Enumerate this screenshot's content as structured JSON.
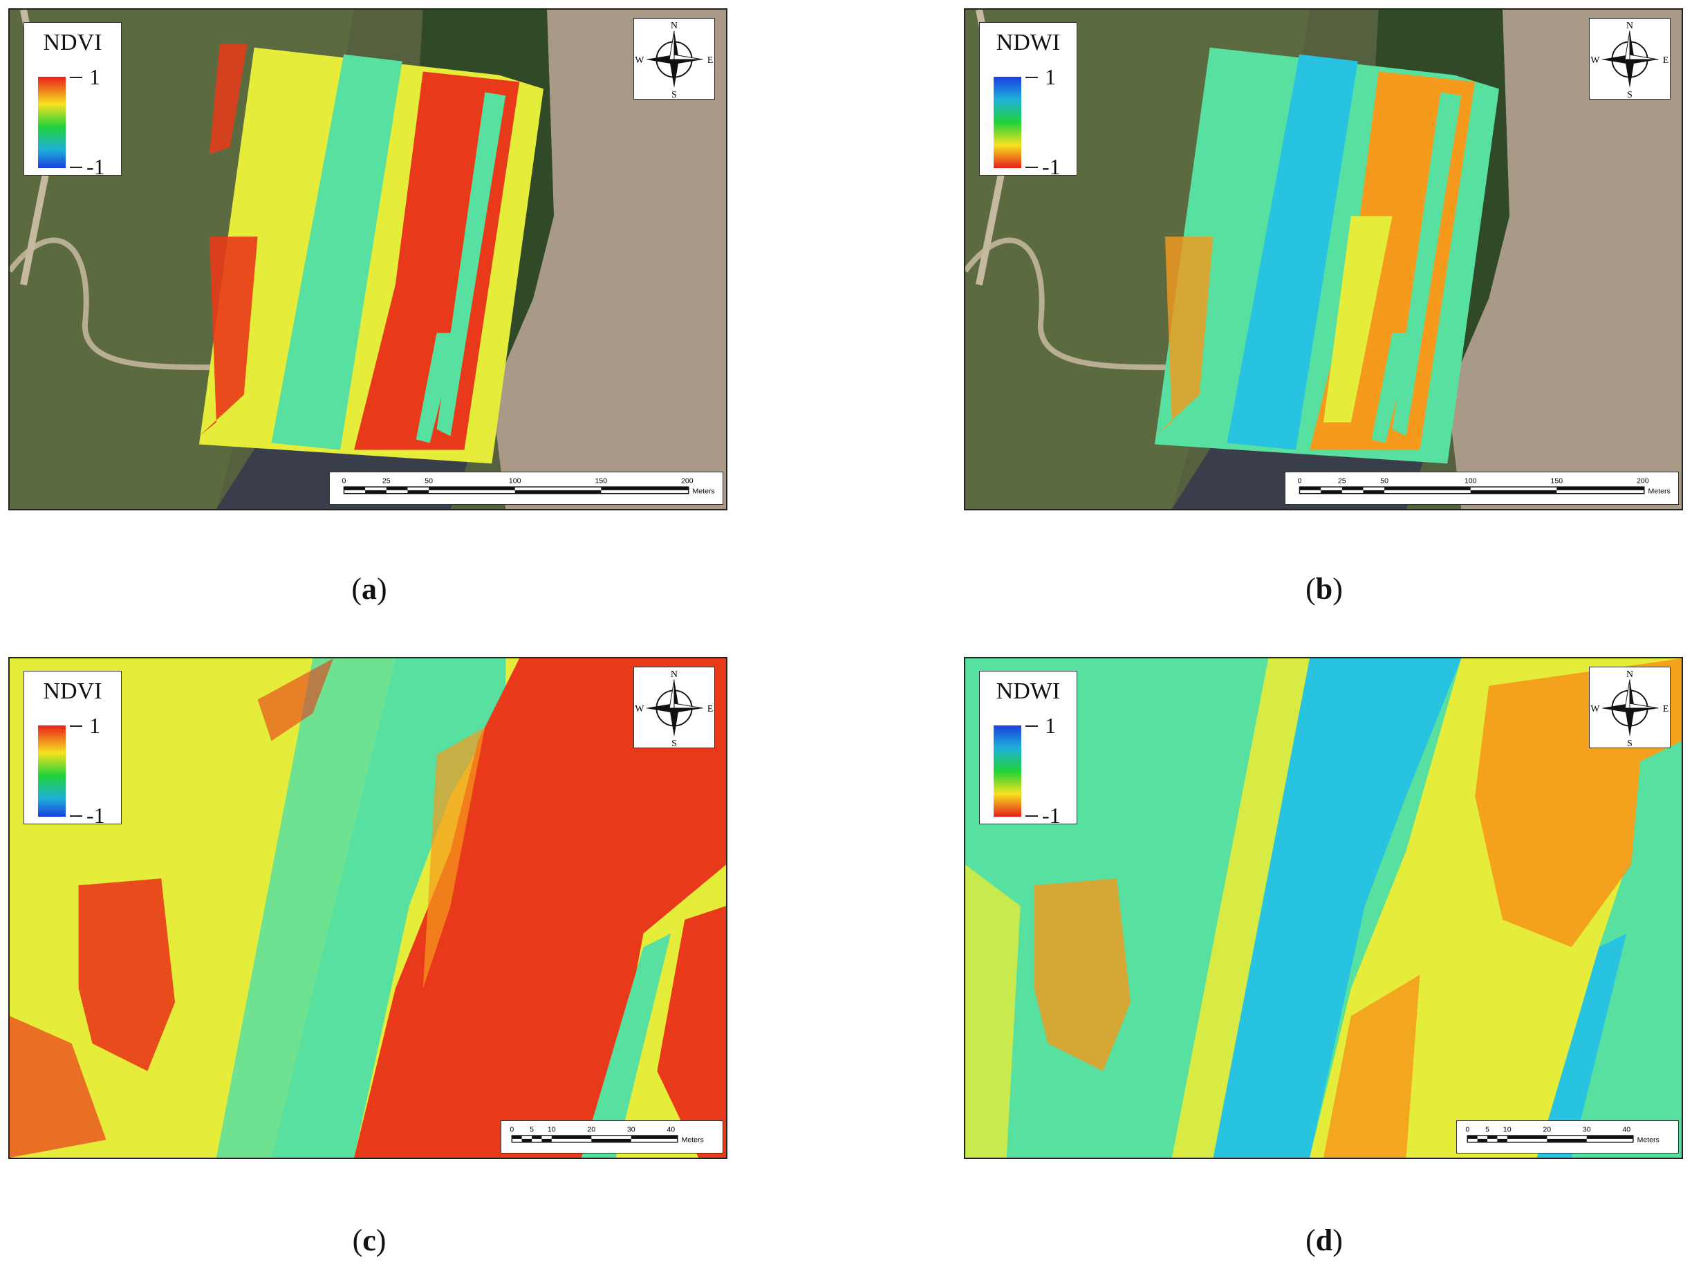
{
  "panels": [
    {
      "id": "a",
      "index_label": "NDVI",
      "max_label": "1",
      "min_label": "-1",
      "caption_letter": "a",
      "scale_ticks": [
        "0",
        "25",
        "50",
        "100",
        "150",
        "200"
      ],
      "scale_unit": "Meters",
      "index": "ndvi"
    },
    {
      "id": "b",
      "index_label": "NDWI",
      "max_label": "1",
      "min_label": "-1",
      "caption_letter": "b",
      "scale_ticks": [
        "0",
        "25",
        "50",
        "100",
        "150",
        "200"
      ],
      "scale_unit": "Meters",
      "index": "ndwi"
    },
    {
      "id": "c",
      "index_label": "NDVI",
      "max_label": "1",
      "min_label": "-1",
      "caption_letter": "c",
      "scale_ticks": [
        "0",
        "5",
        "10",
        "20",
        "30",
        "40"
      ],
      "scale_unit": "Meters",
      "index": "ndvi"
    },
    {
      "id": "d",
      "index_label": "NDWI",
      "max_label": "1",
      "min_label": "-1",
      "caption_letter": "d",
      "scale_ticks": [
        "0",
        "5",
        "10",
        "20",
        "30",
        "40"
      ],
      "scale_unit": "Meters",
      "index": "ndwi"
    }
  ],
  "compass_letters": {
    "n": "N",
    "s": "S",
    "e": "E",
    "w": "W"
  },
  "colors": {
    "ndvi_ramp": [
      "#e8201a",
      "#f7e21f",
      "#1fd23a",
      "#1fb0d8",
      "#1a3fe0"
    ],
    "ndwi_ramp": [
      "#1a3fe0",
      "#1fb0d8",
      "#1fd23a",
      "#f7e21f",
      "#e8201a"
    ],
    "red": "#e83a1a",
    "orange": "#f59a1c",
    "yellow": "#e6ec3a",
    "green_cyan": "#58e0a0",
    "cyan": "#27c3e0",
    "terrain": "#55603e"
  }
}
